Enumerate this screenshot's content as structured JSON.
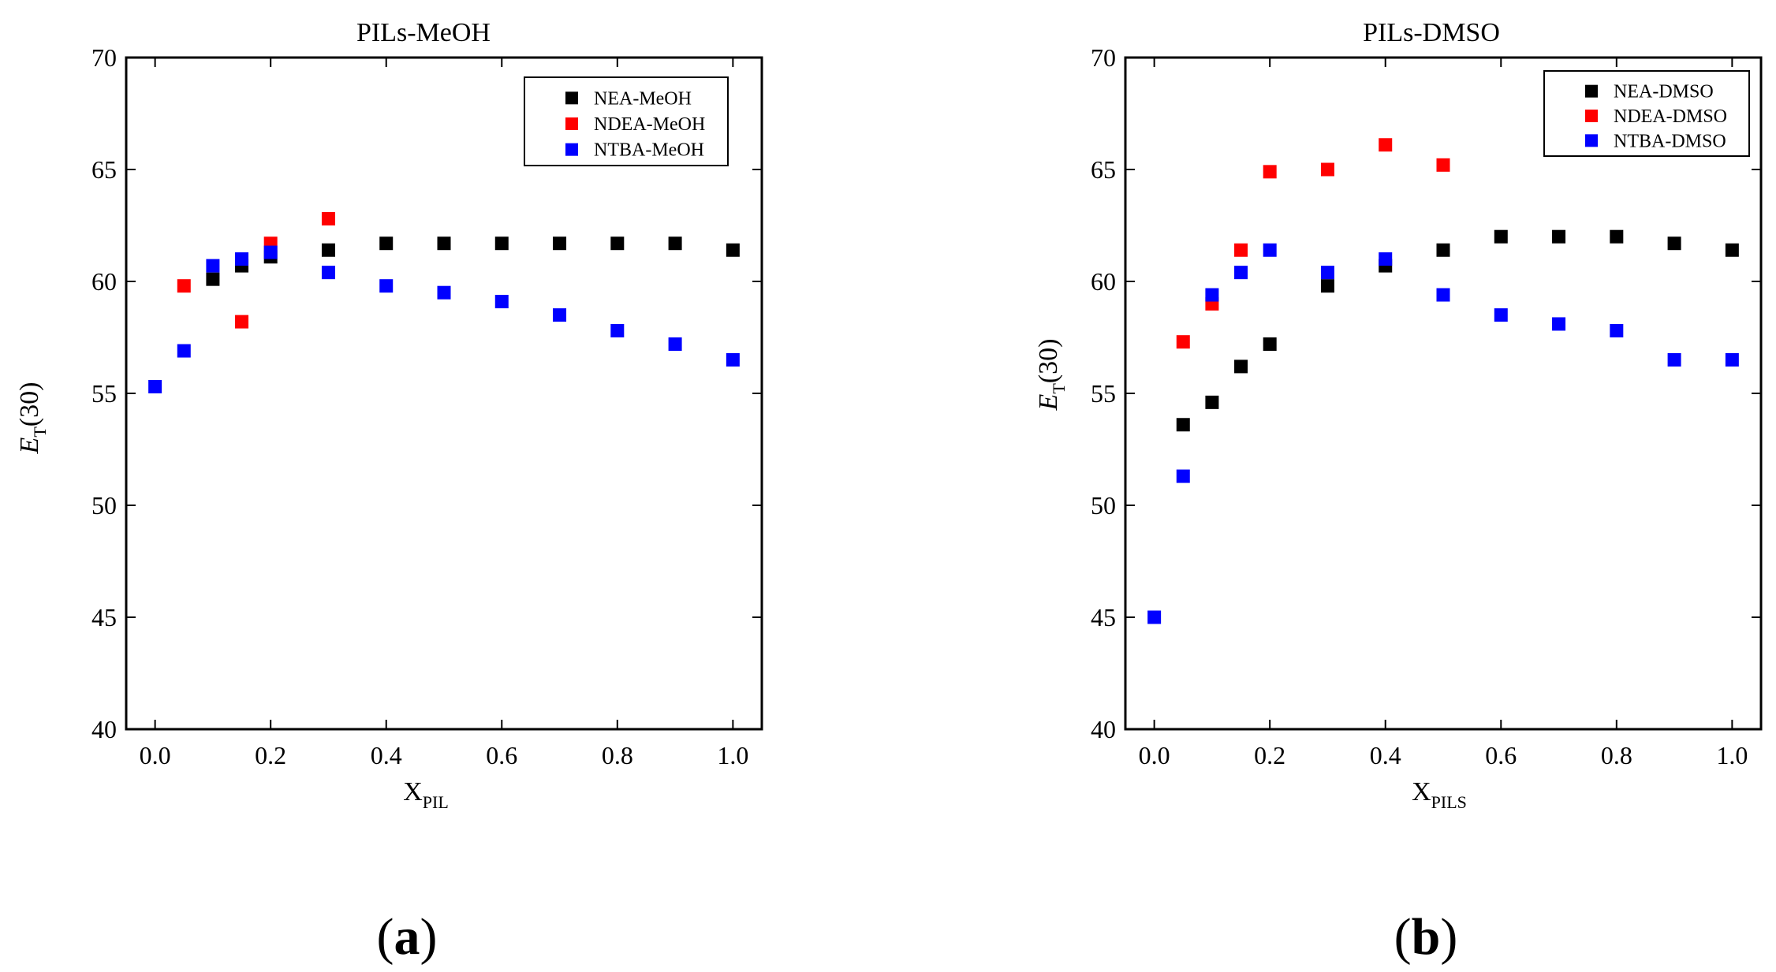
{
  "chart_data": [
    {
      "type": "scatter",
      "title": "PILs-MeOH",
      "panel_label": "a",
      "xlabel_main": "X",
      "xlabel_sub": "PIL",
      "ylabel_main": "E",
      "ylabel_sub": "T",
      "ylabel_suffix": "(30)",
      "xlim": [
        -0.05,
        1.05
      ],
      "ylim": [
        40,
        70
      ],
      "xticks": [
        0.0,
        0.2,
        0.4,
        0.6,
        0.8,
        1.0
      ],
      "xtick_labels": [
        "0.0",
        "0.2",
        "0.4",
        "0.6",
        "0.8",
        "1.0"
      ],
      "yticks": [
        40,
        45,
        50,
        55,
        60,
        65,
        70
      ],
      "ytick_labels": [
        "40",
        "45",
        "50",
        "55",
        "60",
        "65",
        "70"
      ],
      "legend_position": "top-right",
      "series": [
        {
          "name": "NEA-MeOH",
          "color": "#000000",
          "x": [
            0.1,
            0.15,
            0.2,
            0.3,
            0.4,
            0.5,
            0.6,
            0.7,
            0.8,
            0.9,
            1.0
          ],
          "y": [
            60.1,
            60.7,
            61.1,
            61.4,
            61.7,
            61.7,
            61.7,
            61.7,
            61.7,
            61.7,
            61.4
          ]
        },
        {
          "name": "NDEA-MeOH",
          "color": "#ff0000",
          "x": [
            0.05,
            0.15,
            0.2,
            0.3
          ],
          "y": [
            59.8,
            58.2,
            61.7,
            62.8
          ]
        },
        {
          "name": "NTBA-MeOH",
          "color": "#0000ff",
          "x": [
            0.0,
            0.05,
            0.1,
            0.15,
            0.2,
            0.3,
            0.4,
            0.5,
            0.6,
            0.7,
            0.8,
            0.9,
            1.0
          ],
          "y": [
            55.3,
            56.9,
            60.7,
            61.0,
            61.3,
            60.4,
            59.8,
            59.5,
            59.1,
            58.5,
            57.8,
            57.2,
            56.5
          ]
        }
      ]
    },
    {
      "type": "scatter",
      "title": "PILs-DMSO",
      "panel_label": "b",
      "xlabel_main": "X",
      "xlabel_sub": "PILS",
      "ylabel_main": "E",
      "ylabel_sub": "T",
      "ylabel_suffix": "(30)",
      "xlim": [
        -0.05,
        1.05
      ],
      "ylim": [
        40,
        70
      ],
      "xticks": [
        0.0,
        0.2,
        0.4,
        0.6,
        0.8,
        1.0
      ],
      "xtick_labels": [
        "0.0",
        "0.2",
        "0.4",
        "0.6",
        "0.8",
        "1.0"
      ],
      "yticks": [
        40,
        45,
        50,
        55,
        60,
        65,
        70
      ],
      "ytick_labels": [
        "40",
        "45",
        "50",
        "55",
        "60",
        "65",
        "70"
      ],
      "legend_position": "top-right",
      "series": [
        {
          "name": "NEA-DMSO",
          "color": "#000000",
          "x": [
            0.05,
            0.1,
            0.15,
            0.2,
            0.3,
            0.4,
            0.5,
            0.6,
            0.7,
            0.8,
            0.9,
            1.0
          ],
          "y": [
            53.6,
            54.6,
            56.2,
            57.2,
            59.8,
            60.7,
            61.4,
            62.0,
            62.0,
            62.0,
            61.7,
            61.4
          ]
        },
        {
          "name": "NDEA-DMSO",
          "color": "#ff0000",
          "x": [
            0.05,
            0.1,
            0.15,
            0.2,
            0.3,
            0.4,
            0.5
          ],
          "y": [
            57.3,
            59.0,
            61.4,
            64.9,
            65.0,
            66.1,
            65.2
          ]
        },
        {
          "name": "NTBA-DMSO",
          "color": "#0000ff",
          "x": [
            0.0,
            0.05,
            0.1,
            0.15,
            0.2,
            0.3,
            0.4,
            0.5,
            0.6,
            0.7,
            0.8,
            0.9,
            1.0
          ],
          "y": [
            45.0,
            51.3,
            59.4,
            60.4,
            61.4,
            60.4,
            61.0,
            59.4,
            58.5,
            58.1,
            57.8,
            56.5,
            56.5
          ]
        }
      ]
    }
  ]
}
